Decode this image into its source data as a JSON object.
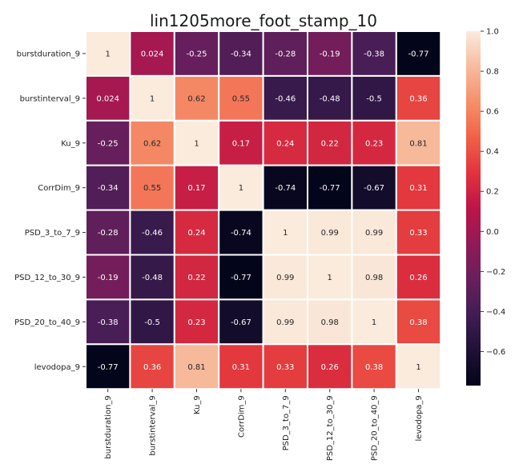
{
  "chart_data": {
    "type": "heatmap",
    "title": "lin1205more_foot_stamp_10",
    "xlabel": "",
    "ylabel": "",
    "rows": [
      "burstduration_9",
      "burstinterval_9",
      "Ku_9",
      "CorrDim_9",
      "PSD_3_to_7_9",
      "PSD_12_to_30_9",
      "PSD_20_to_40_9",
      "levodopa_9"
    ],
    "columns": [
      "burstduration_9",
      "burstinterval_9",
      "Ku_9",
      "CorrDim_9",
      "PSD_3_to_7_9",
      "PSD_12_to_30_9",
      "PSD_20_to_40_9",
      "levodopa_9"
    ],
    "values": [
      [
        1,
        0.024,
        -0.25,
        -0.34,
        -0.28,
        -0.19,
        -0.38,
        -0.77
      ],
      [
        0.024,
        1,
        0.62,
        0.55,
        -0.46,
        -0.48,
        -0.5,
        0.36
      ],
      [
        -0.25,
        0.62,
        1,
        0.17,
        0.24,
        0.22,
        0.23,
        0.81
      ],
      [
        -0.34,
        0.55,
        0.17,
        1,
        -0.74,
        -0.77,
        -0.67,
        0.31
      ],
      [
        -0.28,
        -0.46,
        0.24,
        -0.74,
        1,
        0.99,
        0.99,
        0.33
      ],
      [
        -0.19,
        -0.48,
        0.22,
        -0.77,
        0.99,
        1,
        0.98,
        0.26
      ],
      [
        -0.38,
        -0.5,
        0.23,
        -0.67,
        0.99,
        0.98,
        1,
        0.38
      ],
      [
        -0.77,
        0.36,
        0.81,
        0.31,
        0.33,
        0.26,
        0.38,
        1
      ]
    ],
    "labels": [
      [
        "1",
        "0.024",
        "-0.25",
        "-0.34",
        "-0.28",
        "-0.19",
        "-0.38",
        "-0.77"
      ],
      [
        "0.024",
        "1",
        "0.62",
        "0.55",
        "-0.46",
        "-0.48",
        "-0.5",
        "0.36"
      ],
      [
        "-0.25",
        "0.62",
        "1",
        "0.17",
        "0.24",
        "0.22",
        "0.23",
        "0.81"
      ],
      [
        "-0.34",
        "0.55",
        "0.17",
        "1",
        "-0.74",
        "-0.77",
        "-0.67",
        "0.31"
      ],
      [
        "-0.28",
        "-0.46",
        "0.24",
        "-0.74",
        "1",
        "0.99",
        "0.99",
        "0.33"
      ],
      [
        "-0.19",
        "-0.48",
        "0.22",
        "-0.77",
        "0.99",
        "1",
        "0.98",
        "0.26"
      ],
      [
        "-0.38",
        "-0.5",
        "0.23",
        "-0.67",
        "0.99",
        "0.98",
        "1",
        "0.38"
      ],
      [
        "-0.77",
        "0.36",
        "0.81",
        "0.31",
        "0.33",
        "0.26",
        "0.38",
        "1"
      ]
    ],
    "colormap": "rocket",
    "vmin": -0.77,
    "vmax": 1,
    "colorbar": {
      "ticks": [
        1.0,
        0.8,
        0.6,
        0.4,
        0.2,
        0.0,
        -0.2,
        -0.4,
        -0.6
      ],
      "tick_labels": [
        "1.0",
        "0.8",
        "0.6",
        "0.4",
        "0.2",
        "0.0",
        "−0.2",
        "−0.4",
        "−0.6"
      ],
      "placement": "right"
    },
    "grid": false
  }
}
